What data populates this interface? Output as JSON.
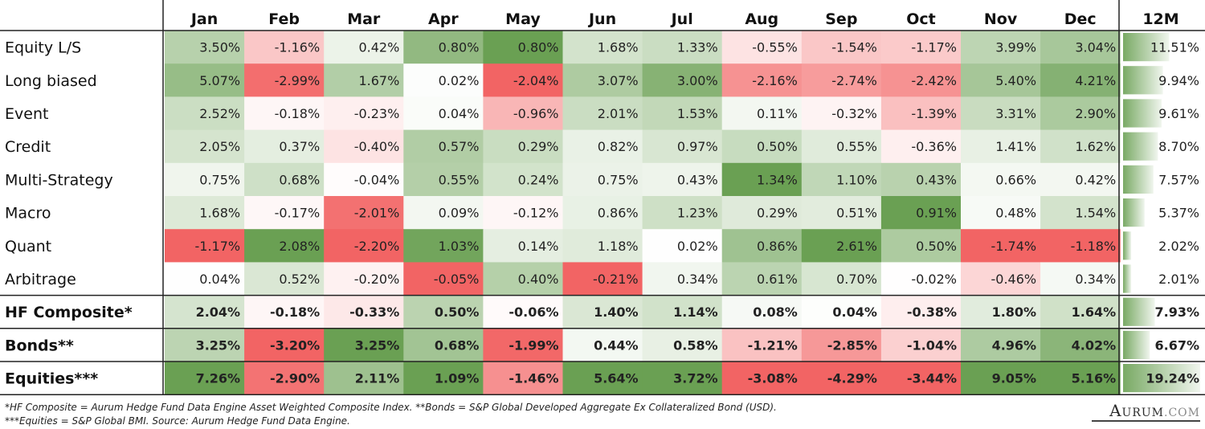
{
  "chart_data": {
    "type": "heatmap",
    "total_header": "12M",
    "months": [
      "Jan",
      "Feb",
      "Mar",
      "Apr",
      "May",
      "Jun",
      "Jul",
      "Aug",
      "Sep",
      "Oct",
      "Nov",
      "Dec"
    ],
    "rows": [
      {
        "name": "Equity L/S",
        "values": [
          3.5,
          -1.16,
          0.42,
          0.8,
          0.8,
          1.68,
          1.33,
          -0.55,
          -1.54,
          -1.17,
          3.99,
          3.04
        ],
        "total": 11.51,
        "bold": false
      },
      {
        "name": "Long biased",
        "values": [
          5.07,
          -2.99,
          1.67,
          0.02,
          -2.04,
          3.07,
          3.0,
          -2.16,
          -2.74,
          -2.42,
          5.4,
          4.21
        ],
        "total": 9.94,
        "bold": false
      },
      {
        "name": "Event",
        "values": [
          2.52,
          -0.18,
          -0.23,
          0.04,
          -0.96,
          2.01,
          1.53,
          0.11,
          -0.32,
          -1.39,
          3.31,
          2.9
        ],
        "total": 9.61,
        "bold": false
      },
      {
        "name": "Credit",
        "values": [
          2.05,
          0.37,
          -0.4,
          0.57,
          0.29,
          0.82,
          0.97,
          0.5,
          0.55,
          -0.36,
          1.41,
          1.62
        ],
        "total": 8.7,
        "bold": false
      },
      {
        "name": "Multi-Strategy",
        "values": [
          0.75,
          0.68,
          -0.04,
          0.55,
          0.24,
          0.75,
          0.43,
          1.34,
          1.1,
          0.43,
          0.66,
          0.42
        ],
        "total": 7.57,
        "bold": false
      },
      {
        "name": "Macro",
        "values": [
          1.68,
          -0.17,
          -2.01,
          0.09,
          -0.12,
          0.86,
          1.23,
          0.29,
          0.51,
          0.91,
          0.48,
          1.54
        ],
        "total": 5.37,
        "bold": false
      },
      {
        "name": "Quant",
        "values": [
          -1.17,
          2.08,
          -2.2,
          1.03,
          0.14,
          1.18,
          0.02,
          0.86,
          2.61,
          0.5,
          -1.74,
          -1.18
        ],
        "total": 2.02,
        "bold": false
      },
      {
        "name": "Arbitrage",
        "values": [
          0.04,
          0.52,
          -0.2,
          -0.05,
          0.4,
          -0.21,
          0.34,
          0.61,
          0.7,
          -0.02,
          -0.46,
          0.34
        ],
        "total": 2.01,
        "bold": false
      },
      {
        "name": "HF Composite*",
        "values": [
          2.04,
          -0.18,
          -0.33,
          0.5,
          -0.06,
          1.4,
          1.14,
          0.08,
          0.04,
          -0.38,
          1.8,
          1.64
        ],
        "total": 7.93,
        "bold": true
      },
      {
        "name": "Bonds**",
        "values": [
          3.25,
          -3.2,
          3.25,
          0.68,
          -1.99,
          0.44,
          0.58,
          -1.21,
          -2.85,
          -1.04,
          4.96,
          4.02
        ],
        "total": 6.67,
        "bold": true
      },
      {
        "name": "Equities***",
        "values": [
          7.26,
          -2.9,
          2.11,
          1.09,
          -1.46,
          5.64,
          3.72,
          -3.08,
          -4.29,
          -3.44,
          9.05,
          5.16
        ],
        "total": 19.24,
        "bold": true
      }
    ],
    "colors": {
      "positive": "#6aa053",
      "negative": "#f26464",
      "bar": "#6aa053"
    }
  },
  "footnote": {
    "line1": "*HF Composite = Aurum Hedge Fund Data Engine Asset Weighted Composite Index. **Bonds = S&P Global Developed Aggregate Ex Collateralized Bond (USD).",
    "line2": "***Equities = S&P Global BMI. Source: Aurum Hedge Fund Data Engine."
  },
  "logo": {
    "main": "Aurum",
    "suffix": ".com"
  }
}
